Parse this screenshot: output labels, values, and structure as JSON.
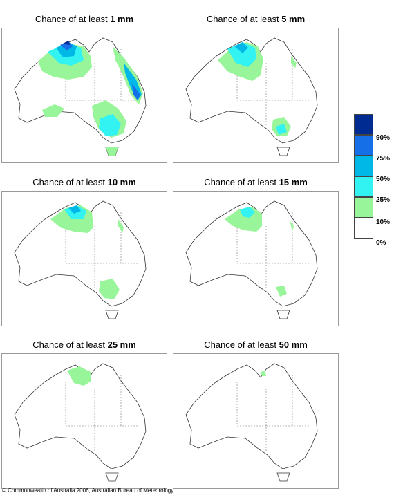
{
  "panels": [
    {
      "prefix": "Chance of at least ",
      "amount": "1 mm"
    },
    {
      "prefix": "Chance of at least ",
      "amount": "5 mm"
    },
    {
      "prefix": "Chance of at least ",
      "amount": "10 mm"
    },
    {
      "prefix": "Chance of at least ",
      "amount": "15 mm"
    },
    {
      "prefix": "Chance of at least ",
      "amount": "25 mm"
    },
    {
      "prefix": "Chance of at least ",
      "amount": "50 mm"
    }
  ],
  "legend": {
    "labels": [
      "90%",
      "75%",
      "50%",
      "25%",
      "10%",
      "0%"
    ],
    "colors": [
      "#002b91",
      "#1570e8",
      "#00b8e8",
      "#33f2f2",
      "#99f599",
      "#ffffff"
    ]
  },
  "copyright": "© Commonwealth of Australia 2006, Australian Bureau of Meteorology"
}
